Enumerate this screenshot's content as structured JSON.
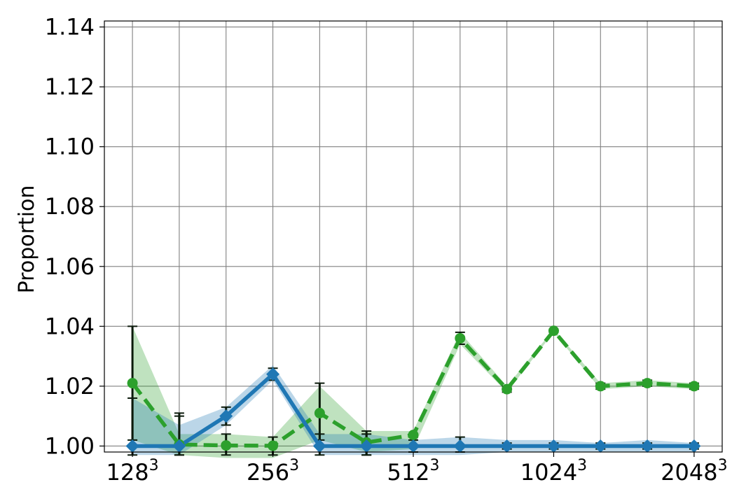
{
  "chart_data": {
    "type": "line",
    "title": "",
    "xlabel": "",
    "ylabel": "Proportion",
    "x": [
      0,
      1,
      2,
      3,
      4,
      5,
      6,
      7,
      8,
      9,
      10,
      11,
      12
    ],
    "xlim": [
      -0.6,
      12.6
    ],
    "ylim": [
      0.998,
      1.142
    ],
    "grid": true,
    "legend": "none",
    "x_ticks": [
      {
        "pos": 0,
        "base": "128",
        "exp": "3"
      },
      {
        "pos": 3,
        "base": "256",
        "exp": "3"
      },
      {
        "pos": 6,
        "base": "512",
        "exp": "3"
      },
      {
        "pos": 9,
        "base": "1024",
        "exp": "3"
      },
      {
        "pos": 12,
        "base": "2048",
        "exp": "3"
      }
    ],
    "y_ticks": [
      {
        "value": 1.0,
        "label": "1.00"
      },
      {
        "value": 1.02,
        "label": "1.02"
      },
      {
        "value": 1.04,
        "label": "1.04"
      },
      {
        "value": 1.06,
        "label": "1.06"
      },
      {
        "value": 1.08,
        "label": "1.08"
      },
      {
        "value": 1.1,
        "label": "1.10"
      },
      {
        "value": 1.12,
        "label": "1.12"
      },
      {
        "value": 1.14,
        "label": "1.14"
      }
    ],
    "series": [
      {
        "color": "#2ca02c",
        "style": "dashed",
        "marker": "circle",
        "values": [
          1.021,
          1.0005,
          1.0002,
          1.0001,
          1.011,
          1.0012,
          1.0037,
          1.036,
          1.019,
          1.0385,
          1.02,
          1.021,
          1.02
        ],
        "band_low": [
          1.002,
          0.997,
          0.996,
          0.996,
          1.002,
          0.998,
          0.999,
          1.034,
          1.018,
          1.038,
          1.019,
          1.02,
          1.019
        ],
        "band_high": [
          1.04,
          1.004,
          1.004,
          1.003,
          1.02,
          1.005,
          1.005,
          1.038,
          1.02,
          1.039,
          1.021,
          1.022,
          1.021
        ],
        "err_low": [
          1.002,
          0.997,
          0.997,
          0.997,
          1.002,
          0.997,
          1.003,
          1.034,
          1.018,
          1.038,
          1.019,
          1.02,
          1.019
        ],
        "err_high": [
          1.04,
          1.011,
          1.004,
          1.003,
          1.021,
          1.005,
          1.004,
          1.038,
          1.02,
          1.039,
          1.021,
          1.022,
          1.021
        ]
      },
      {
        "color": "#1f77b4",
        "style": "solid",
        "marker": "diamond",
        "values": [
          1.0,
          1.0,
          1.01,
          1.024,
          1.0,
          1.0,
          1.0,
          1.0,
          1.0,
          1.0,
          1.0,
          1.0,
          1.0
        ],
        "band_low": [
          0.997,
          0.997,
          1.007,
          1.022,
          0.997,
          0.997,
          0.997,
          0.997,
          0.998,
          0.998,
          0.998,
          0.998,
          0.998
        ],
        "band_high": [
          1.016,
          1.007,
          1.013,
          1.027,
          1.004,
          1.004,
          1.002,
          1.003,
          1.002,
          1.002,
          1.001,
          1.002,
          1.001
        ],
        "err_low": [
          0.997,
          0.997,
          1.007,
          1.022,
          0.997,
          0.997,
          0.998,
          0.998,
          0.999,
          0.999,
          0.999,
          0.999,
          0.999
        ],
        "err_high": [
          1.016,
          1.01,
          1.013,
          1.026,
          1.004,
          1.004,
          1.002,
          1.003,
          1.001,
          1.001,
          1.001,
          1.001,
          1.001
        ]
      }
    ]
  }
}
